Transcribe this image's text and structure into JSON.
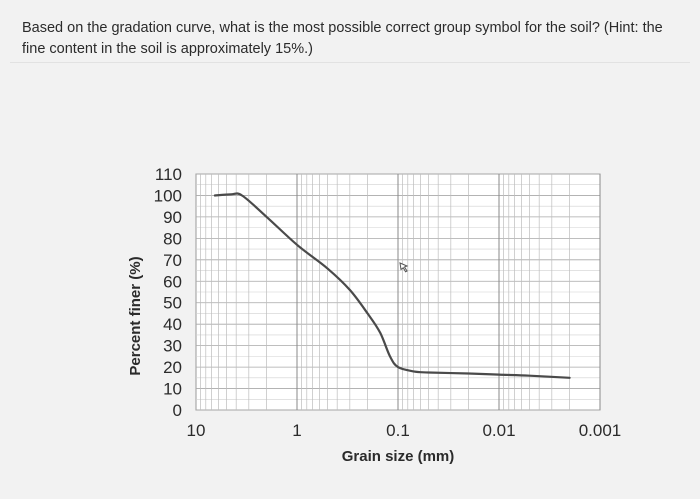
{
  "question": {
    "text": "Based on the gradation curve, what is the most possible correct group symbol for the soil? (Hint:  the fine content in the soil is approximately 15%.)"
  },
  "icons": {
    "cursor": "mouse-cursor-icon"
  },
  "chart_data": {
    "type": "line",
    "title": "",
    "xlabel": "Grain size (mm)",
    "ylabel": "Percent finer (%)",
    "x_scale": "log",
    "x_reversed": true,
    "xlim": [
      10,
      0.001
    ],
    "ylim": [
      0,
      110
    ],
    "x_ticks": [
      10,
      1,
      0.1,
      0.01,
      0.001
    ],
    "x_tick_labels": [
      "10",
      "1",
      "0.1",
      "0.01",
      "0.001"
    ],
    "y_ticks": [
      0,
      10,
      20,
      30,
      40,
      50,
      60,
      70,
      80,
      90,
      100,
      110
    ],
    "y_tick_labels": [
      "0",
      "10",
      "20",
      "30",
      "40",
      "50",
      "60",
      "70",
      "80",
      "90",
      "100",
      "110"
    ],
    "grid": true,
    "line_color": "#4a4a4a",
    "series": [
      {
        "x": [
          6.5,
          4.5,
          3.5,
          2.0,
          1.0,
          0.5,
          0.3,
          0.2,
          0.15,
          0.12,
          0.1,
          0.07,
          0.05,
          0.02,
          0.01,
          0.005,
          0.002
        ],
        "y": [
          100,
          100.5,
          100,
          90,
          77,
          66,
          56,
          45,
          36,
          25,
          20,
          18,
          17.5,
          17,
          16.5,
          16,
          15
        ]
      }
    ]
  }
}
